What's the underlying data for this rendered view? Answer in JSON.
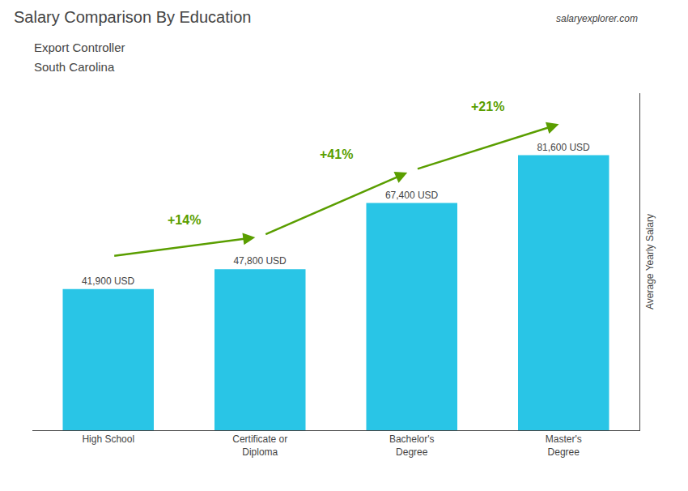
{
  "chart_data": {
    "type": "bar",
    "title": "Salary Comparison By Education",
    "subtitle": [
      "Export Controller",
      "South Carolina"
    ],
    "source": "salaryexplorer.com",
    "ylabel": "Average Yearly Salary",
    "categories": [
      "High School",
      "Certificate or\nDiploma",
      "Bachelor's\nDegree",
      "Master's\nDegree"
    ],
    "values": [
      41900,
      47800,
      67400,
      81600
    ],
    "value_labels": [
      "41,900 USD",
      "47,800 USD",
      "67,400 USD",
      "81,600 USD"
    ],
    "data_labels": true,
    "annotations": [
      {
        "text": "+14%",
        "from": 0,
        "to": 1
      },
      {
        "text": "+41%",
        "from": 1,
        "to": 2
      },
      {
        "text": "+21%",
        "from": 2,
        "to": 3
      }
    ],
    "color": "#29c5e6",
    "ylim": [
      0,
      100000
    ],
    "tick_labels": "x",
    "grid": false
  }
}
